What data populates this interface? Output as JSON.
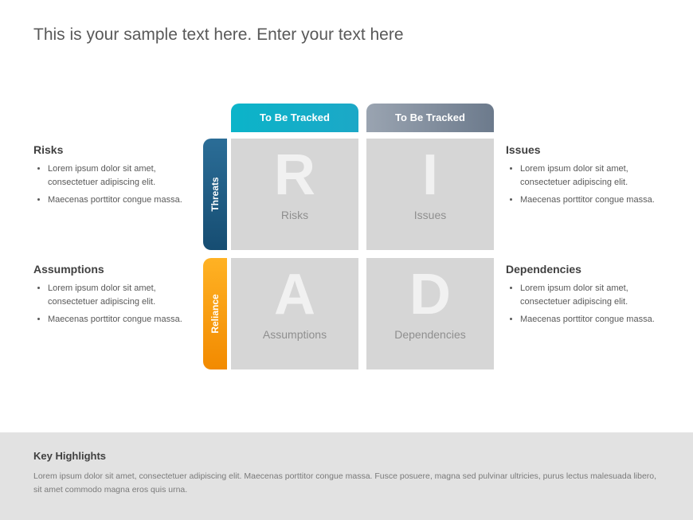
{
  "title": "This is your sample text here. Enter your text here",
  "columns": {
    "left": {
      "label": "To Be Tracked",
      "bg_start": "#0bb4c9",
      "bg_end": "#1ca8c7"
    },
    "right": {
      "label": "To Be Tracked",
      "bg_start": "#9aa4b1",
      "bg_end": "#6c7a8c"
    }
  },
  "rows": {
    "top": {
      "label": "Threats",
      "bg_start": "#2b6d97",
      "bg_end": "#164d72"
    },
    "bottom": {
      "label": "Reliance",
      "bg_start": "#ffb224",
      "bg_end": "#f28a00"
    }
  },
  "cells": {
    "r": {
      "letter": "R",
      "label": "Risks"
    },
    "i": {
      "letter": "I",
      "label": "Issues"
    },
    "a": {
      "letter": "A",
      "label": "Assumptions"
    },
    "d": {
      "letter": "D",
      "label": "Dependencies"
    }
  },
  "side": {
    "risks": {
      "heading": "Risks",
      "b1": "Lorem ipsum dolor sit amet, consectetuer adipiscing elit.",
      "b2": "Maecenas porttitor congue massa."
    },
    "issues": {
      "heading": "Issues",
      "b1": "Lorem ipsum dolor sit amet, consectetuer adipiscing elit.",
      "b2": "Maecenas porttitor congue massa."
    },
    "assumptions": {
      "heading": "Assumptions",
      "b1": "Lorem ipsum dolor sit amet, consectetuer adipiscing elit.",
      "b2": "Maecenas porttitor congue massa."
    },
    "dependencies": {
      "heading": "Dependencies",
      "b1": "Lorem ipsum dolor sit amet, consectetuer adipiscing elit.",
      "b2": "Maecenas porttitor congue massa."
    }
  },
  "footer": {
    "heading": "Key Highlights",
    "text": "Lorem ipsum dolor sit amet, consectetuer adipiscing elit. Maecenas porttitor congue massa. Fusce posuere, magna sed pulvinar ultricies, purus lectus malesuada libero, sit amet commodo magna eros quis urna."
  },
  "style": {
    "cell_bg": "#d6d6d6",
    "cell_letter_color": "#f1f1f1",
    "cell_label_color": "#8f8f8f",
    "title_color": "#595959",
    "heading_color": "#404040",
    "body_text_color": "#595959",
    "footer_bg": "#e2e2e2",
    "title_fontsize": 21,
    "cell_letter_fontsize": 72,
    "cell_label_fontsize": 14,
    "side_heading_fontsize": 14,
    "side_body_fontsize": 11,
    "footer_heading_fontsize": 13,
    "footer_text_fontsize": 10.5,
    "structure": "2x2-matrix"
  }
}
